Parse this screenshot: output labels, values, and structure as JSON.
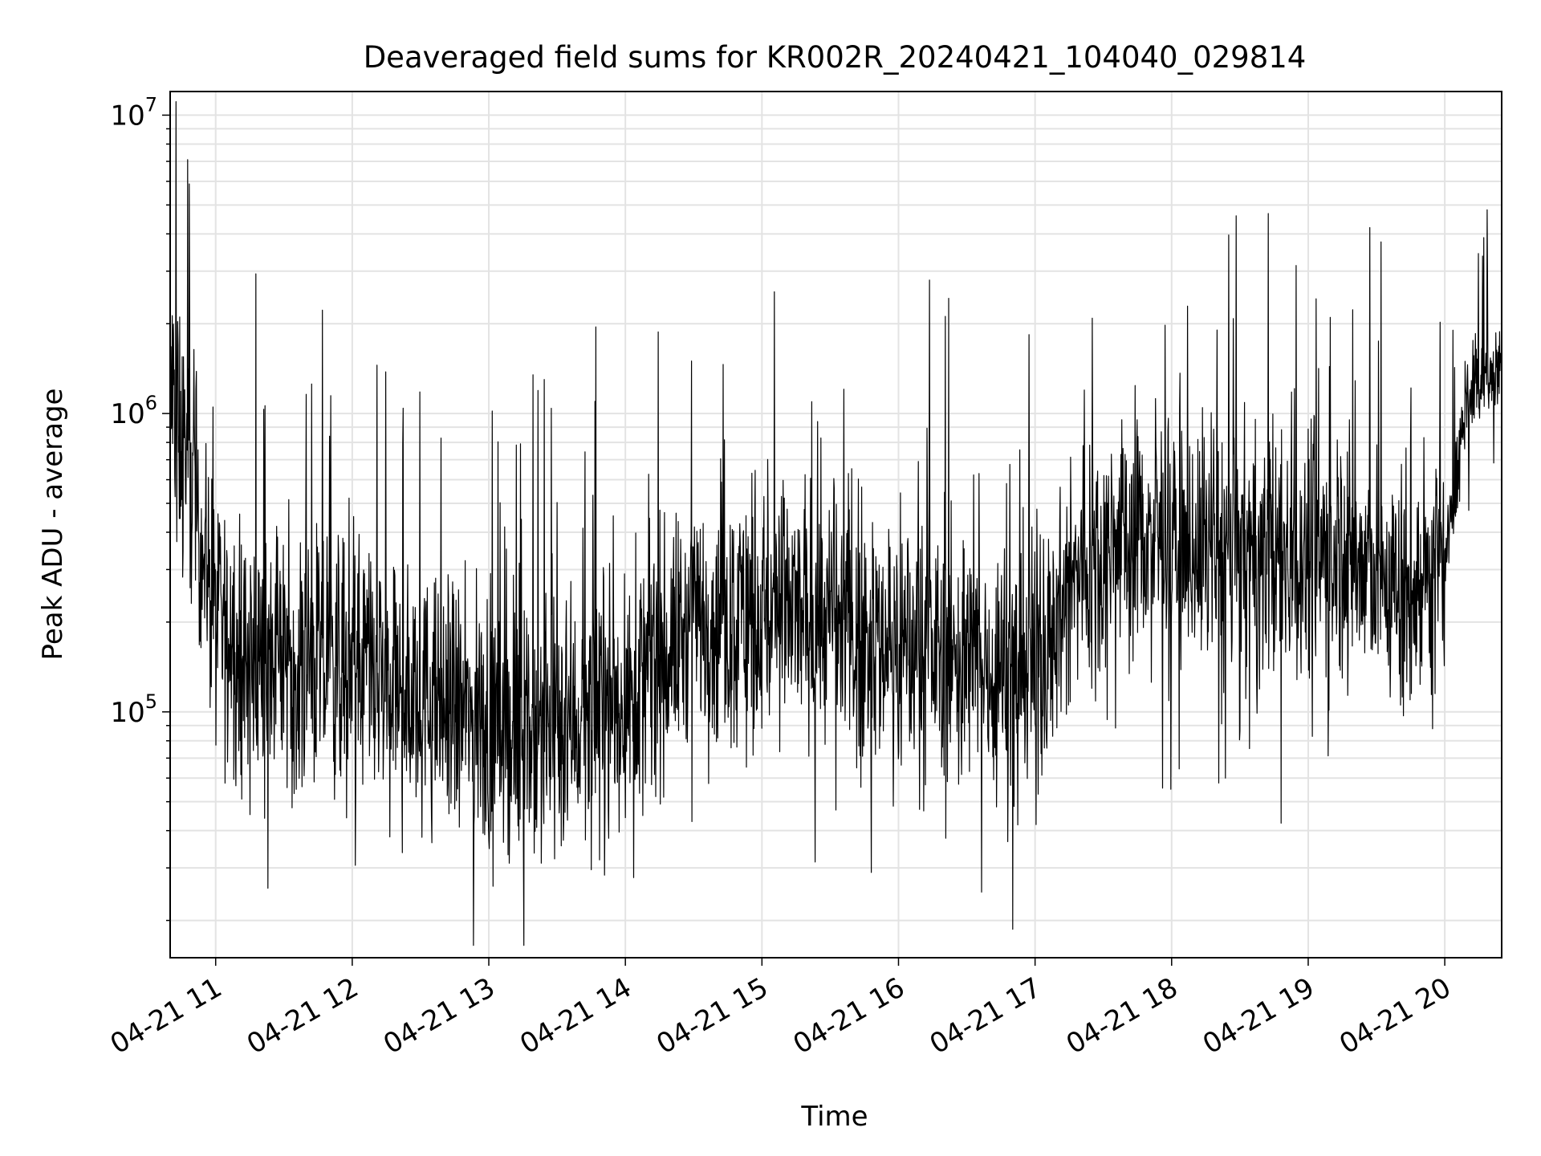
{
  "chart_data": {
    "type": "line",
    "title": "Deaveraged field sums for KR002R_20240421_104040_029814",
    "xlabel": "Time",
    "ylabel": "Peak ADU - average",
    "yscale": "log",
    "ylim": [
      15000,
      12000000
    ],
    "xlim": [
      "2024-04-21 10:40",
      "2024-04-21 20:25"
    ],
    "grid": true,
    "x_ticks": [
      "04-21 11",
      "04-21 12",
      "04-21 13",
      "04-21 14",
      "04-21 15",
      "04-21 16",
      "04-21 17",
      "04-21 18",
      "04-21 19",
      "04-21 20"
    ],
    "y_ticks": [
      {
        "base": "10",
        "exp": "5"
      },
      {
        "base": "10",
        "exp": "6"
      },
      {
        "base": "10",
        "exp": "7"
      }
    ],
    "series": [
      {
        "color": "#000000",
        "x": [
          "2024-04-21 10:40",
          "2024-04-21 10:50",
          "2024-04-21 11:00",
          "2024-04-21 11:15",
          "2024-04-21 11:30",
          "2024-04-21 11:45",
          "2024-04-21 12:00",
          "2024-04-21 12:15",
          "2024-04-21 12:30",
          "2024-04-21 12:45",
          "2024-04-21 13:00",
          "2024-04-21 13:15",
          "2024-04-21 13:30",
          "2024-04-21 13:45",
          "2024-04-21 14:00",
          "2024-04-21 14:15",
          "2024-04-21 14:30",
          "2024-04-21 14:45",
          "2024-04-21 15:00",
          "2024-04-21 15:15",
          "2024-04-21 15:30",
          "2024-04-21 15:45",
          "2024-04-21 16:00",
          "2024-04-21 16:15",
          "2024-04-21 16:30",
          "2024-04-21 16:45",
          "2024-04-21 17:00",
          "2024-04-21 17:15",
          "2024-04-21 17:30",
          "2024-04-21 17:45",
          "2024-04-21 18:00",
          "2024-04-21 18:15",
          "2024-04-21 18:30",
          "2024-04-21 18:45",
          "2024-04-21 19:00",
          "2024-04-21 19:15",
          "2024-04-21 19:30",
          "2024-04-21 19:45",
          "2024-04-21 20:00",
          "2024-04-21 20:10",
          "2024-04-21 20:20",
          "2024-04-21 20:25"
        ],
        "y": [
          1200000,
          600000,
          200000,
          150000,
          160000,
          140000,
          150000,
          120000,
          110000,
          100000,
          90000,
          85000,
          90000,
          100000,
          110000,
          150000,
          200000,
          210000,
          220000,
          210000,
          200000,
          180000,
          170000,
          160000,
          150000,
          140000,
          150000,
          250000,
          380000,
          400000,
          380000,
          350000,
          330000,
          320000,
          340000,
          350000,
          280000,
          250000,
          300000,
          1200000,
          1350000,
          1500000
        ]
      }
    ]
  }
}
